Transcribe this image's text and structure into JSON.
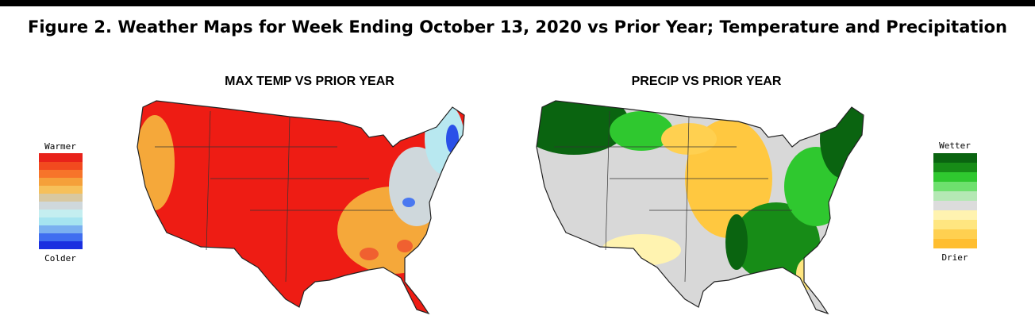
{
  "title": "Figure 2. Weather Maps for Week Ending October 13, 2020 vs Prior Year; Temperature and Precipitation",
  "maps": [
    {
      "title": "MAX TEMP VS PRIOR YEAR",
      "legend": {
        "top": "Warmer",
        "bottom": "Colder"
      }
    },
    {
      "title": "PRECIP VS PRIOR YEAR",
      "legend": {
        "top": "Wetter",
        "bottom": "Drier"
      }
    }
  ]
}
